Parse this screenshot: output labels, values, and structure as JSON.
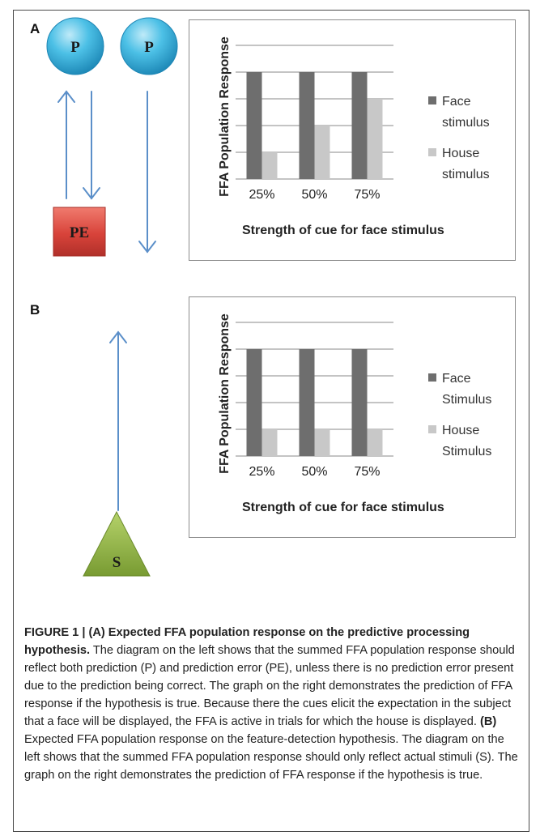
{
  "panels": {
    "a": {
      "letter": "A",
      "left_nodes": [
        "P",
        "P",
        "PE"
      ],
      "chart_data": {
        "type": "bar",
        "categories": [
          "25%",
          "50%",
          "75%"
        ],
        "series": [
          {
            "name": "Face stimulus",
            "values": [
              4,
              4,
              4
            ]
          },
          {
            "name": "House stimulus",
            "values": [
              1,
              2,
              3
            ]
          }
        ],
        "legend": [
          "Face\nstimulus",
          "House\nstimulus"
        ],
        "xlabel": "Strength of cue for face stimulus",
        "ylabel": "FFA Population Response",
        "ylim": [
          0,
          5
        ],
        "grid": true,
        "legend_position": "right",
        "colors": [
          "#6e6e6e",
          "#c8c8c8"
        ]
      }
    },
    "b": {
      "letter": "B",
      "left_nodes": [
        "S"
      ],
      "chart_data": {
        "type": "bar",
        "categories": [
          "25%",
          "50%",
          "75%"
        ],
        "series": [
          {
            "name": "Face Stimulus",
            "values": [
              4,
              4,
              4
            ]
          },
          {
            "name": "House Stimulus",
            "values": [
              1,
              1,
              1
            ]
          }
        ],
        "legend": [
          "Face\nStimulus",
          "House\nStimulus"
        ],
        "xlabel": "Strength of cue for face stimulus",
        "ylabel": "FFA Population Response",
        "ylim": [
          0,
          5
        ],
        "grid": true,
        "legend_position": "right",
        "colors": [
          "#6e6e6e",
          "#c8c8c8"
        ]
      }
    }
  },
  "caption": {
    "bold_lead": "FIGURE 1 | (A) Expected FFA population response on the predictive processing hypothesis.",
    "part_a": " The diagram on the left shows that the summed FFA population response should reflect both prediction (P) and prediction error (PE), unless there is no prediction error present due to the prediction being correct. The graph on the right demonstrates the prediction of FFA response if the hypothesis is true. Because there the cues elicit the expectation in the subject that a face will be displayed, the FFA is active in trials for which the house is displayed. ",
    "bold_b": "(B)",
    "part_b": " Expected FFA population response on the feature-detection hypothesis. The diagram on the left shows that the summed FFA population response should only reflect actual stimuli (S). The graph on the right demonstrates the prediction of FFA response if the hypothesis is true."
  },
  "colors": {
    "arrow": "#5b8fc9",
    "node_p": "#3fb3dc",
    "node_pe": "#d9463c",
    "node_s": "#86a93c"
  }
}
